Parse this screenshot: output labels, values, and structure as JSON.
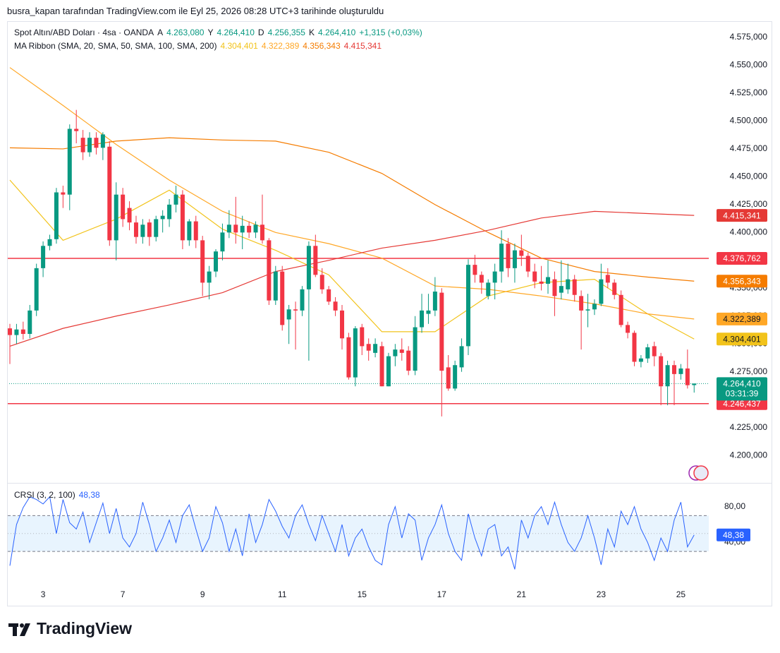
{
  "header": "busra_kapan tarafından TradingView.com ile Eyl 25, 2026 08:28 UTC+3 tarihinde oluşturuldu",
  "footer": "TradingView",
  "chart_data": {
    "type": "candlestick",
    "symbol": "Spot Altın/ABD Doları · 4sa · OANDA",
    "ohlc_legend": [
      {
        "key": "A",
        "label": "4.263,080"
      },
      {
        "key": "Y",
        "label": "4.264,410"
      },
      {
        "key": "D",
        "label": "4.256,355"
      },
      {
        "key": "K",
        "label": "4.264,410"
      }
    ],
    "change": "+1,315 (+0,03%)",
    "up_color": "#089981",
    "down_color": "#f23645",
    "categories": [
      null,
      null,
      null,
      null,
      null,
      "3",
      null,
      null,
      null,
      null,
      null,
      null,
      null,
      null,
      null,
      null,
      null,
      "7",
      null,
      null,
      null,
      null,
      null,
      null,
      null,
      null,
      null,
      null,
      null,
      "9",
      null,
      null,
      null,
      null,
      null,
      null,
      null,
      null,
      null,
      null,
      null,
      "11",
      null,
      null,
      null,
      null,
      null,
      null,
      null,
      null,
      null,
      null,
      null,
      "15",
      null,
      null,
      null,
      null,
      null,
      null,
      null,
      null,
      null,
      null,
      null,
      "17",
      null,
      null,
      null,
      null,
      null,
      null,
      null,
      null,
      null,
      null,
      null,
      "21",
      null,
      null,
      null,
      null,
      null,
      null,
      null,
      null,
      null,
      null,
      null,
      "23",
      null,
      null,
      null,
      null,
      null,
      null,
      null,
      null,
      null,
      null,
      null,
      "25",
      null,
      null
    ],
    "candles": [
      [
        4314,
        4318,
        4282,
        4308
      ],
      [
        4308,
        4318,
        4300,
        4313
      ],
      [
        4313,
        4320,
        4304,
        4309
      ],
      [
        4309,
        4335,
        4305,
        4330
      ],
      [
        4330,
        4372,
        4325,
        4368
      ],
      [
        4368,
        4392,
        4360,
        4388
      ],
      [
        4388,
        4398,
        4384,
        4394
      ],
      [
        4394,
        4440,
        4390,
        4436
      ],
      [
        4436,
        4442,
        4422,
        4434
      ],
      [
        4434,
        4497,
        4420,
        4493
      ],
      [
        4493,
        4510,
        4480,
        4491
      ],
      [
        4485,
        4492,
        4465,
        4472
      ],
      [
        4472,
        4490,
        4468,
        4485
      ],
      [
        4485,
        4490,
        4470,
        4476
      ],
      [
        4476,
        4490,
        4465,
        4488
      ],
      [
        4477,
        4482,
        4388,
        4393
      ],
      [
        4393,
        4445,
        4375,
        4434
      ],
      [
        4434,
        4440,
        4405,
        4412
      ],
      [
        4422,
        4428,
        4402,
        4409
      ],
      [
        4409,
        4415,
        4390,
        4396
      ],
      [
        4396,
        4412,
        4390,
        4407
      ],
      [
        4409,
        4412,
        4388,
        4396
      ],
      [
        4396,
        4415,
        4392,
        4412
      ],
      [
        4412,
        4420,
        4400,
        4415
      ],
      [
        4412,
        4430,
        4405,
        4425
      ],
      [
        4425,
        4442,
        4418,
        4434
      ],
      [
        4434,
        4438,
        4385,
        4393
      ],
      [
        4393,
        4412,
        4388,
        4410
      ],
      [
        4410,
        4415,
        4386,
        4393
      ],
      [
        4393,
        4397,
        4343,
        4355
      ],
      [
        4355,
        4370,
        4340,
        4365
      ],
      [
        4365,
        4385,
        4360,
        4383
      ],
      [
        4383,
        4408,
        4375,
        4400
      ],
      [
        4400,
        4420,
        4395,
        4407
      ],
      [
        4407,
        4432,
        4390,
        4400
      ],
      [
        4400,
        4415,
        4385,
        4406
      ],
      [
        4406,
        4410,
        4395,
        4400
      ],
      [
        4400,
        4410,
        4395,
        4407
      ],
      [
        4407,
        4434,
        4390,
        4393
      ],
      [
        4393,
        4395,
        4335,
        4339
      ],
      [
        4339,
        4370,
        4335,
        4365
      ],
      [
        4365,
        4370,
        4312,
        4317
      ],
      [
        4322,
        4335,
        4300,
        4331
      ],
      [
        4331,
        4338,
        4295,
        4330
      ],
      [
        4330,
        4352,
        4325,
        4349
      ],
      [
        4349,
        4392,
        4285,
        4388
      ],
      [
        4388,
        4398,
        4360,
        4362
      ],
      [
        4362,
        4368,
        4345,
        4349
      ],
      [
        4349,
        4352,
        4335,
        4338
      ],
      [
        4338,
        4342,
        4325,
        4330
      ],
      [
        4330,
        4335,
        4295,
        4305
      ],
      [
        4306,
        4310,
        4268,
        4270
      ],
      [
        4270,
        4316,
        4262,
        4314
      ],
      [
        4315,
        4318,
        4290,
        4298
      ],
      [
        4300,
        4305,
        4285,
        4294
      ],
      [
        4292,
        4305,
        4288,
        4300
      ],
      [
        4298,
        4302,
        4262,
        4262
      ],
      [
        4262,
        4292,
        4262,
        4289
      ],
      [
        4289,
        4300,
        4280,
        4295
      ],
      [
        4295,
        4305,
        4285,
        4292
      ],
      [
        4294,
        4298,
        4272,
        4276
      ],
      [
        4276,
        4325,
        4272,
        4315
      ],
      [
        4315,
        4345,
        4310,
        4330
      ],
      [
        4327,
        4345,
        4318,
        4330
      ],
      [
        4330,
        4360,
        4325,
        4347
      ],
      [
        4346,
        4350,
        4235,
        4276
      ],
      [
        4279,
        4290,
        4258,
        4260
      ],
      [
        4260,
        4285,
        4258,
        4281
      ],
      [
        4279,
        4305,
        4275,
        4298
      ],
      [
        4298,
        4376,
        4290,
        4371
      ],
      [
        4371,
        4380,
        4355,
        4362
      ],
      [
        4362,
        4365,
        4345,
        4355
      ],
      [
        4343,
        4358,
        4340,
        4355
      ],
      [
        4355,
        4372,
        4340,
        4365
      ],
      [
        4365,
        4402,
        4355,
        4390
      ],
      [
        4390,
        4395,
        4360,
        4368
      ],
      [
        4368,
        4390,
        4355,
        4384
      ],
      [
        4384,
        4398,
        4370,
        4379
      ],
      [
        4379,
        4382,
        4360,
        4365
      ],
      [
        4365,
        4372,
        4350,
        4356
      ],
      [
        4356,
        4370,
        4348,
        4354
      ],
      [
        4354,
        4375,
        4345,
        4360
      ],
      [
        4358,
        4365,
        4325,
        4343
      ],
      [
        4346,
        4375,
        4340,
        4352
      ],
      [
        4349,
        4372,
        4345,
        4358
      ],
      [
        4358,
        4362,
        4338,
        4344
      ],
      [
        4343,
        4348,
        4295,
        4330
      ],
      [
        4330,
        4345,
        4315,
        4331
      ],
      [
        4331,
        4340,
        4326,
        4336
      ],
      [
        4336,
        4372,
        4334,
        4358
      ],
      [
        4362,
        4368,
        4350,
        4355
      ],
      [
        4355,
        4358,
        4340,
        4344
      ],
      [
        4344,
        4348,
        4315,
        4317
      ],
      [
        4317,
        4320,
        4305,
        4310
      ],
      [
        4310,
        4312,
        4280,
        4284
      ],
      [
        4284,
        4290,
        4279,
        4287
      ],
      [
        4287,
        4300,
        4283,
        4297
      ],
      [
        4298,
        4302,
        4280,
        4289
      ],
      [
        4289,
        4292,
        4245,
        4262
      ],
      [
        4262,
        4285,
        4245,
        4281
      ],
      [
        4281,
        4285,
        4245,
        4273
      ],
      [
        4273,
        4282,
        4268,
        4278
      ],
      [
        4278,
        4295,
        4260,
        4263
      ],
      [
        4263.08,
        4264.41,
        4256.355,
        4264.41
      ]
    ],
    "ylim": [
      4176,
      4589.6
    ],
    "yticks": [
      {
        "value": 4200,
        "label": "4.200,000"
      },
      {
        "value": 4225,
        "label": "4.225,000"
      },
      {
        "value": 4250,
        "label": "4.250,000"
      },
      {
        "value": 4275,
        "label": "4.275,000"
      },
      {
        "value": 4300,
        "label": "4.300,000"
      },
      {
        "value": 4325,
        "label": "4.325,000"
      },
      {
        "value": 4350,
        "label": "4.350,000"
      },
      {
        "value": 4375,
        "label": "4.375,000"
      },
      {
        "value": 4400,
        "label": "4.400,000"
      },
      {
        "value": 4425,
        "label": "4.425,000"
      },
      {
        "value": 4450,
        "label": "4.450,000"
      },
      {
        "value": 4475,
        "label": "4.475,000"
      },
      {
        "value": 4500,
        "label": "4.500,000"
      },
      {
        "value": 4525,
        "label": "4.525,000"
      },
      {
        "value": 4550,
        "label": "4.550,000"
      },
      {
        "value": 4575,
        "label": "4.575,000"
      }
    ],
    "ma_ribbon": {
      "label": "MA Ribbon (SMA, 20, SMA, 50, SMA, 100, SMA, 200)",
      "x": [
        0,
        8,
        16,
        24,
        32,
        40,
        48,
        56,
        64,
        72,
        80,
        88,
        96,
        103
      ],
      "series": [
        {
          "color": "#f2c31b",
          "value_label": "4.304,401",
          "values": [
            4447,
            4393,
            4412,
            4438,
            4403,
            4384,
            4362,
            4311,
            4311,
            4343,
            4355,
            4358,
            4327,
            4304.401
          ]
        },
        {
          "color": "#ffa726",
          "value_label": "4.322,389",
          "values": [
            4548,
            4514,
            4479,
            4447,
            4419,
            4400,
            4390,
            4377,
            4352,
            4349,
            4343,
            4336,
            4327,
            4322.389
          ]
        },
        {
          "color": "#f57c00",
          "value_label": "4.356,343",
          "values": [
            4476,
            4475,
            4482,
            4485,
            4483,
            4482,
            4472,
            4453,
            4425,
            4400,
            4377,
            4365,
            4360,
            4356.343
          ]
        },
        {
          "color": "#e53935",
          "value_label": "4.415,341",
          "values": [
            4298,
            4314,
            4325,
            4335,
            4346,
            4365,
            4375,
            4386,
            4393,
            4402,
            4413,
            4419,
            4417,
            4415.341
          ]
        }
      ]
    },
    "levels": [
      {
        "value": 4376.762,
        "label": "4.376,762",
        "color": "#f23645"
      },
      {
        "value": 4246.437,
        "label": "4.246,437",
        "color": "#f23645"
      }
    ],
    "last_price": {
      "value": 4264.41,
      "label": "4.264,410",
      "countdown": "03:31:39"
    },
    "indicator": {
      "label": "CRSI (3, 2, 100)",
      "value_label": "48,38",
      "color": "#2962ff",
      "ylim": [
        -7,
        105
      ],
      "yticks": [
        {
          "value": 80,
          "label": "80,00"
        },
        {
          "value": 40,
          "label": "40,00"
        }
      ],
      "band": [
        30,
        70
      ],
      "midline": 50,
      "values": [
        14,
        60,
        79,
        91,
        88,
        83,
        91,
        50,
        88,
        62,
        55,
        74,
        40,
        62,
        84,
        50,
        78,
        45,
        35,
        50,
        85,
        60,
        30,
        45,
        65,
        40,
        70,
        82,
        55,
        30,
        45,
        80,
        62,
        30,
        55,
        25,
        72,
        40,
        60,
        88,
        75,
        58,
        45,
        70,
        82,
        60,
        42,
        70,
        50,
        30,
        60,
        25,
        45,
        55,
        35,
        20,
        15,
        60,
        80,
        45,
        72,
        65,
        20,
        45,
        60,
        82,
        50,
        30,
        20,
        72,
        45,
        25,
        55,
        60,
        25,
        35,
        10,
        65,
        45,
        70,
        80,
        60,
        85,
        60,
        40,
        30,
        45,
        70,
        45,
        15,
        55,
        35,
        75,
        60,
        80,
        55,
        40,
        20,
        45,
        30,
        65,
        85,
        35,
        48.38
      ]
    }
  }
}
